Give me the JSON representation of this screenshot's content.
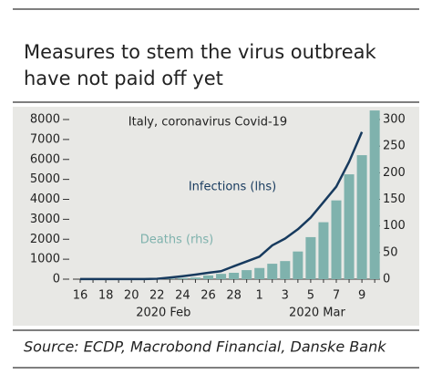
{
  "chart_data": {
    "type": "combo",
    "title": [
      "Measures to stem the virus outbreak",
      "have not paid off yet"
    ],
    "subtitle": "Italy, coronavirus Covid-19",
    "source": "Source: ECDP, Macrobond Financial, Danske Bank",
    "categories": [
      "16",
      null,
      "18",
      null,
      "20",
      null,
      "22",
      null,
      "24",
      null,
      "26",
      null,
      "28",
      null,
      "1",
      null,
      "3",
      null,
      "5",
      null,
      "7",
      null,
      "9",
      null
    ],
    "groups": [
      {
        "label": "2020 Feb",
        "from": 0,
        "to": 13
      },
      {
        "label": "2020 Mar",
        "from": 14,
        "to": 23
      }
    ],
    "series": [
      {
        "name": "Deaths (rhs)",
        "type": "bar",
        "axis": "y2",
        "color": "#7fb2ad",
        "values": [
          0,
          0,
          0,
          0,
          0,
          0,
          0,
          1,
          2,
          3,
          7,
          10,
          12,
          17,
          21,
          29,
          34,
          52,
          79,
          107,
          148,
          197,
          233,
          317
        ]
      },
      {
        "name": "Infections (lhs)",
        "type": "line",
        "color": "#173a5e",
        "values": [
          3,
          3,
          3,
          3,
          3,
          3,
          20,
          79,
          150,
          229,
          322,
          400,
          650,
          888,
          1128,
          1694,
          2036,
          2502,
          3089,
          3858,
          4636,
          5883,
          7375,
          null
        ]
      }
    ],
    "ylim": [
      0,
      8400
    ],
    "yticks": [
      0,
      1000,
      2000,
      3000,
      4000,
      5000,
      6000,
      7000,
      8000
    ],
    "y2lim": [
      0,
      315
    ],
    "y2ticks": [
      0,
      50,
      100,
      150,
      200,
      250,
      300
    ]
  }
}
